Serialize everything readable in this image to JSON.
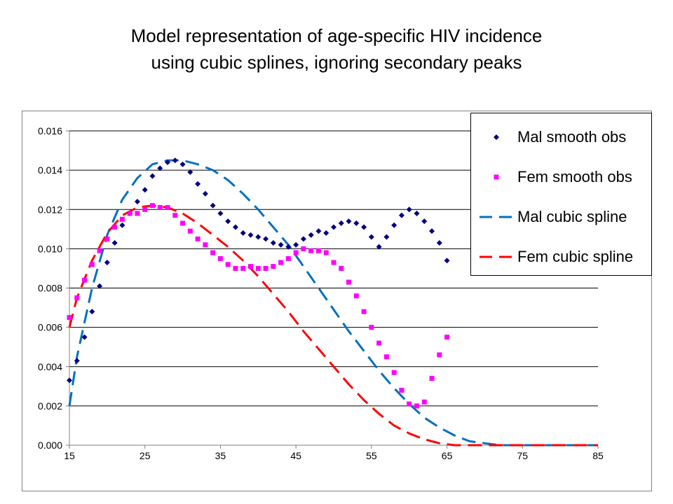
{
  "title": {
    "line1": "Model representation of age-specific HIV incidence",
    "line2": "using cubic splines, ignoring secondary peaks"
  },
  "colors": {
    "mal_obs": "#000080",
    "fem_obs": "#ff00ff",
    "mal_spline": "#0070c0",
    "fem_spline": "#ff0000",
    "gridline": "#000000",
    "axis": "#808080"
  },
  "chart_data": {
    "type": "line",
    "title": "",
    "xlabel": "",
    "ylabel": "",
    "xlim": [
      15,
      85
    ],
    "ylim": [
      0,
      0.016
    ],
    "x_ticks": [
      "15",
      "25",
      "35",
      "45",
      "55",
      "65",
      "75",
      "85"
    ],
    "y_ticks": [
      "0.000",
      "0.002",
      "0.004",
      "0.006",
      "0.008",
      "0.010",
      "0.012",
      "0.014",
      "0.016"
    ],
    "grid": "horizontal",
    "legend_position": "top-right",
    "series": [
      {
        "name": "Mal smooth obs",
        "style": "diamond-markers",
        "x": [
          15,
          16,
          17,
          18,
          19,
          20,
          21,
          22,
          23,
          24,
          25,
          26,
          27,
          28,
          29,
          30,
          31,
          32,
          33,
          34,
          35,
          36,
          37,
          38,
          39,
          40,
          41,
          42,
          43,
          44,
          45,
          46,
          47,
          48,
          49,
          50,
          51,
          52,
          53,
          54,
          55,
          56,
          57,
          58,
          59,
          60,
          61,
          62,
          63,
          64,
          65
        ],
        "y": [
          0.0033,
          0.0043,
          0.0055,
          0.0068,
          0.0081,
          0.0093,
          0.0103,
          0.0112,
          0.0118,
          0.0124,
          0.013,
          0.0137,
          0.0141,
          0.0144,
          0.0145,
          0.0143,
          0.0139,
          0.0133,
          0.0128,
          0.0122,
          0.0118,
          0.0114,
          0.0111,
          0.0108,
          0.0107,
          0.0106,
          0.0105,
          0.0103,
          0.0102,
          0.0101,
          0.0102,
          0.0105,
          0.0107,
          0.0109,
          0.0108,
          0.0111,
          0.0113,
          0.0114,
          0.0113,
          0.0111,
          0.0106,
          0.0101,
          0.0106,
          0.0112,
          0.0117,
          0.012,
          0.0118,
          0.0114,
          0.0109,
          0.0103,
          0.0094
        ]
      },
      {
        "name": "Fem smooth obs",
        "style": "square-markers",
        "x": [
          15,
          16,
          17,
          18,
          19,
          20,
          21,
          22,
          23,
          24,
          25,
          26,
          27,
          28,
          29,
          30,
          31,
          32,
          33,
          34,
          35,
          36,
          37,
          38,
          39,
          40,
          41,
          42,
          43,
          44,
          45,
          46,
          47,
          48,
          49,
          50,
          51,
          52,
          53,
          54,
          55,
          56,
          57,
          58,
          59,
          60,
          61,
          62,
          63,
          64,
          65
        ],
        "y": [
          0.0065,
          0.0075,
          0.0084,
          0.0092,
          0.0099,
          0.0105,
          0.0111,
          0.0115,
          0.0118,
          0.0118,
          0.012,
          0.0122,
          0.0121,
          0.0121,
          0.0117,
          0.0113,
          0.0109,
          0.0105,
          0.0102,
          0.0098,
          0.0095,
          0.0092,
          0.009,
          0.009,
          0.0091,
          0.009,
          0.009,
          0.0091,
          0.0093,
          0.0095,
          0.0098,
          0.01,
          0.0099,
          0.0099,
          0.0098,
          0.0093,
          0.009,
          0.0083,
          0.0076,
          0.0068,
          0.006,
          0.0052,
          0.0045,
          0.0037,
          0.0028,
          0.0021,
          0.002,
          0.0022,
          0.0034,
          0.0046,
          0.0055
        ]
      },
      {
        "name": "Mal cubic spline",
        "style": "dashed-line",
        "x": [
          15,
          16,
          18,
          20,
          22,
          24,
          26,
          28,
          30,
          32,
          34,
          36,
          38,
          40,
          42,
          44,
          46,
          48,
          50,
          52,
          54,
          56,
          58,
          60,
          62,
          64,
          66,
          68,
          70,
          72,
          74,
          76,
          78,
          80,
          82,
          85
        ],
        "y": [
          0.002,
          0.0045,
          0.008,
          0.0107,
          0.0125,
          0.0136,
          0.0143,
          0.0145,
          0.0145,
          0.0143,
          0.014,
          0.0135,
          0.0128,
          0.012,
          0.0111,
          0.0102,
          0.0091,
          0.008,
          0.0069,
          0.0058,
          0.0048,
          0.0038,
          0.0029,
          0.0021,
          0.0014,
          0.0009,
          0.0005,
          0.0002,
          0.0001,
          0.0,
          0.0,
          0.0,
          0.0,
          0.0,
          0.0,
          0.0
        ]
      },
      {
        "name": "Fem cubic spline",
        "style": "dashed-line",
        "x": [
          15,
          16,
          18,
          20,
          22,
          24,
          26,
          28,
          30,
          32,
          34,
          36,
          38,
          40,
          42,
          44,
          46,
          48,
          50,
          52,
          54,
          56,
          58,
          60,
          62,
          64,
          66,
          68,
          70,
          72,
          74,
          76,
          78,
          80,
          82,
          85
        ],
        "y": [
          0.006,
          0.0075,
          0.0094,
          0.0108,
          0.0117,
          0.0121,
          0.0122,
          0.0121,
          0.0118,
          0.0113,
          0.0107,
          0.0101,
          0.0094,
          0.0086,
          0.0077,
          0.0068,
          0.0058,
          0.0049,
          0.004,
          0.0031,
          0.0023,
          0.0016,
          0.001,
          0.0006,
          0.0003,
          0.0001,
          0.0,
          0.0,
          0.0,
          0.0,
          0.0,
          0.0,
          0.0,
          0.0,
          0.0,
          0.0
        ]
      }
    ]
  }
}
